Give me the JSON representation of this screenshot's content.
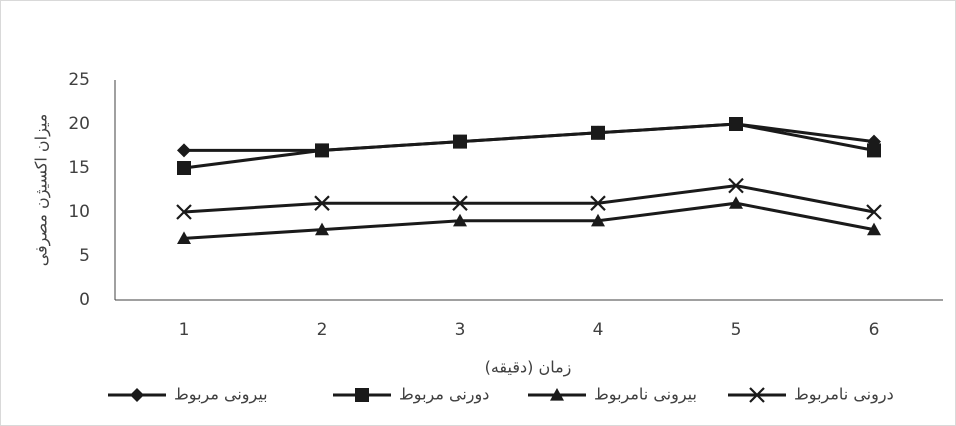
{
  "chart_data": {
    "type": "line",
    "y_label": "میزان اکسیژن مصرفی",
    "x_label": "زمان (دقیقه)",
    "categories": [
      1,
      2,
      3,
      4,
      5,
      6
    ],
    "series": [
      {
        "name": "بیرونی مربوط",
        "color": "#1a1a1a",
        "marker": "diamond",
        "values": [
          17,
          17,
          18,
          19,
          20,
          18
        ]
      },
      {
        "name": "دورنی مربوط",
        "color": "#1a1a1a",
        "marker": "square",
        "values": [
          15,
          17,
          18,
          19,
          20,
          17
        ]
      },
      {
        "name": "بیرونی نامربوط",
        "color": "#1a1a1a",
        "marker": "triangle",
        "values": [
          7,
          8,
          9,
          9,
          11,
          8
        ]
      },
      {
        "name": "درونی نامربوط",
        "color": "#1a1a1a",
        "marker": "x",
        "values": [
          10,
          11,
          11,
          11,
          13,
          10
        ]
      }
    ],
    "ylim": [
      0,
      25
    ],
    "yticks": [
      0,
      5,
      10,
      15,
      20,
      25
    ],
    "grid": false,
    "legend": "bottom"
  }
}
